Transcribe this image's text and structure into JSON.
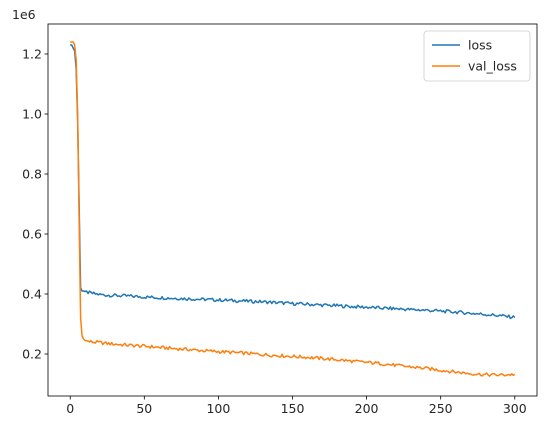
{
  "chart_data": {
    "type": "line",
    "title": "",
    "xlabel": "",
    "ylabel": "",
    "offset_text": "1e6",
    "xlim": [
      -15,
      315
    ],
    "ylim": [
      60000,
      1300000
    ],
    "x_ticks": [
      0,
      50,
      100,
      150,
      200,
      250,
      300
    ],
    "x_tick_labels": [
      "0",
      "50",
      "100",
      "150",
      "200",
      "250",
      "300"
    ],
    "y_ticks": [
      200000,
      400000,
      600000,
      800000,
      1000000,
      1200000
    ],
    "y_tick_labels": [
      "0.2",
      "0.4",
      "0.6",
      "0.8",
      "1.0",
      "1.2"
    ],
    "grid": false,
    "legend_position": "top-right",
    "series": [
      {
        "name": "loss",
        "color": "#1f77b4",
        "x": [
          0,
          1,
          2,
          3,
          4,
          5,
          6,
          7,
          8,
          9,
          10,
          12,
          15,
          20,
          25,
          30,
          40,
          50,
          60,
          70,
          80,
          90,
          100,
          110,
          120,
          130,
          140,
          150,
          160,
          170,
          180,
          190,
          200,
          210,
          220,
          230,
          240,
          250,
          260,
          270,
          280,
          290,
          300
        ],
        "y": [
          1230000,
          1230000,
          1220000,
          1210000,
          1150000,
          980000,
          700000,
          420000,
          410000,
          410000,
          408000,
          405000,
          402000,
          398000,
          396000,
          395000,
          393000,
          390000,
          388000,
          386000,
          384000,
          382000,
          380000,
          378000,
          376000,
          374000,
          371000,
          368000,
          366000,
          363000,
          361000,
          358000,
          356000,
          353000,
          351000,
          348000,
          346000,
          343000,
          340000,
          336000,
          332000,
          328000,
          322000
        ]
      },
      {
        "name": "val_loss",
        "color": "#ff7f0e",
        "x": [
          0,
          1,
          2,
          3,
          4,
          5,
          6,
          7,
          8,
          9,
          10,
          12,
          15,
          20,
          25,
          30,
          40,
          50,
          60,
          70,
          80,
          90,
          100,
          110,
          120,
          130,
          140,
          150,
          160,
          170,
          180,
          190,
          200,
          210,
          220,
          230,
          240,
          250,
          260,
          270,
          280,
          290,
          300
        ],
        "y": [
          1240000,
          1240000,
          1240000,
          1230000,
          1180000,
          1000000,
          650000,
          320000,
          260000,
          250000,
          245000,
          242000,
          240000,
          238000,
          235000,
          233000,
          229000,
          226000,
          222000,
          218000,
          215000,
          211000,
          208000,
          205000,
          202000,
          198000,
          195000,
          192000,
          189000,
          185000,
          181000,
          176000,
          172000,
          168000,
          162000,
          157000,
          152000,
          146000,
          140000,
          135000,
          131000,
          130000,
          132000
        ]
      }
    ]
  }
}
